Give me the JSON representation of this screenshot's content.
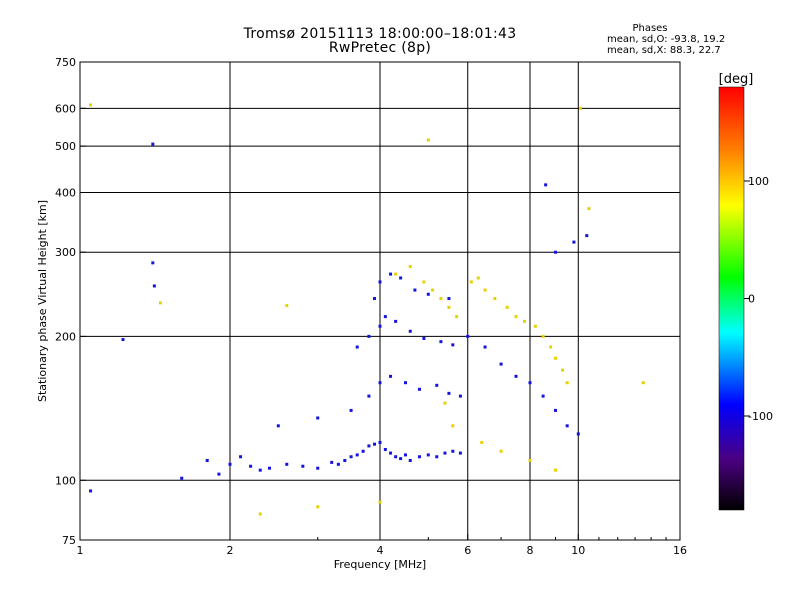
{
  "header": {
    "title_line1": "Tromsø 20151113 18:00:00–18:01:43",
    "title_line2": "RwPretec (8p)",
    "stats_heading": "Phases",
    "stats_line1": "mean, sd,O: -93.8, 19.2",
    "stats_line2": "mean, sd,X:  88.3, 22.7"
  },
  "chart_data": {
    "type": "scatter",
    "title": "Tromsø 20151113 18:00:00–18:01:43",
    "subtitle": "RwPretec (8p)",
    "xlabel": "Frequency [MHz]",
    "ylabel": "Stationary phase Virtual Height [km]",
    "x_scale": "log",
    "y_scale": "log",
    "xlim": [
      1,
      16
    ],
    "ylim": [
      75,
      750
    ],
    "x_ticks": [
      1,
      2,
      4,
      6,
      8,
      10,
      16
    ],
    "x_tick_labels": [
      "1",
      "2",
      "4",
      "6",
      "8",
      "10",
      "16"
    ],
    "x_gridlines": [
      2,
      4,
      6,
      8,
      10
    ],
    "y_ticks": [
      75,
      100,
      200,
      300,
      400,
      500,
      600,
      750
    ],
    "y_tick_labels": [
      "75",
      "100",
      "200",
      "300",
      "400",
      "500",
      "600",
      "750"
    ],
    "y_gridlines": [
      100,
      200,
      300,
      400,
      500,
      600
    ],
    "grid": true,
    "colorbar": {
      "label": "[deg]",
      "range": [
        -180,
        180
      ],
      "ticks": [
        100,
        0,
        -100
      ],
      "tick_labels": [
        "100",
        "0",
        "-100"
      ],
      "colors": [
        "#000000",
        "#4b0082",
        "#0000ff",
        "#00ffff",
        "#00ff00",
        "#ffff00",
        "#ff8000",
        "#ff0000"
      ]
    },
    "series": [
      {
        "name": "O",
        "color": "#1414e0",
        "x": [
          1.05,
          1.22,
          1.4,
          1.4,
          1.41,
          1.6,
          1.8,
          1.9,
          2.0,
          2.1,
          2.2,
          2.3,
          2.4,
          2.6,
          2.8,
          3.0,
          3.2,
          3.3,
          3.4,
          3.5,
          3.6,
          3.7,
          3.8,
          3.9,
          4.0,
          4.1,
          4.2,
          4.3,
          4.4,
          4.5,
          4.6,
          4.8,
          5.0,
          5.2,
          5.4,
          5.6,
          5.8,
          6.0,
          6.5,
          7.0,
          7.5,
          8.0,
          8.5,
          9.0,
          9.5,
          10.0,
          2.5,
          3.0,
          3.5,
          3.8,
          4.0,
          4.2,
          4.5,
          4.8,
          5.2,
          5.5,
          5.8,
          3.6,
          3.8,
          4.0,
          4.1,
          4.3,
          4.6,
          4.9,
          5.3,
          5.6,
          3.9,
          4.0,
          4.2,
          4.4,
          4.7,
          5.0,
          5.5,
          8.6,
          9.0,
          9.8,
          10.4
        ],
        "y": [
          95,
          197,
          505,
          285,
          255,
          101,
          110,
          103,
          108,
          112,
          107,
          105,
          106,
          108,
          107,
          106,
          109,
          108,
          110,
          112,
          113,
          115,
          118,
          119,
          120,
          116,
          114,
          112,
          111,
          113,
          110,
          112,
          113,
          112,
          114,
          115,
          114,
          200,
          190,
          175,
          165,
          160,
          150,
          140,
          130,
          125,
          130,
          135,
          140,
          150,
          160,
          165,
          160,
          155,
          158,
          152,
          150,
          190,
          200,
          210,
          220,
          215,
          205,
          198,
          195,
          192,
          240,
          260,
          270,
          265,
          250,
          245,
          240,
          415,
          300,
          315,
          325
        ]
      },
      {
        "name": "X",
        "color": "#e6d200",
        "x": [
          1.05,
          1.45,
          2.3,
          2.6,
          3.0,
          4.0,
          4.3,
          4.6,
          4.9,
          5.1,
          5.3,
          5.5,
          5.7,
          6.1,
          6.3,
          6.5,
          6.8,
          7.2,
          7.5,
          7.8,
          8.2,
          8.5,
          8.8,
          9.0,
          9.3,
          9.5,
          10.1,
          10.5,
          13.5,
          5.0,
          5.4,
          5.6,
          6.4,
          7.0,
          8.0,
          9.0
        ],
        "y": [
          610,
          235,
          85,
          232,
          88,
          90,
          270,
          280,
          260,
          250,
          240,
          230,
          220,
          260,
          265,
          250,
          240,
          230,
          220,
          215,
          210,
          200,
          190,
          180,
          170,
          160,
          600,
          370,
          160,
          515,
          145,
          130,
          120,
          115,
          110,
          105
        ]
      }
    ]
  }
}
